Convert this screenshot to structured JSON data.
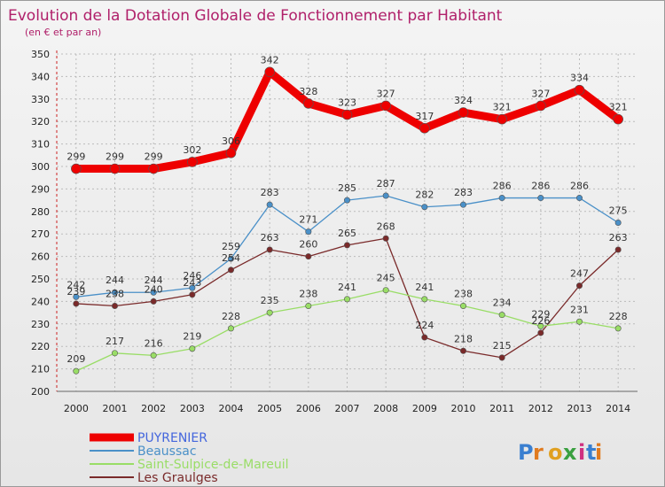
{
  "title": "Evolution de la Dotation Globale de Fonctionnement par Habitant",
  "subtitle": "(en € et par an)",
  "brand": "Proxiti",
  "colors": {
    "PUYRENIER": "#ee0000",
    "Beaussac": "#4a90c8",
    "Saint-Sulpice-de-Mareuil": "#99dd66",
    "Les Graulges": "#7a2a2a",
    "grid": "#bbbbbb",
    "title": "#b0206a"
  },
  "chart_data": {
    "type": "line",
    "title": "Evolution de la Dotation Globale de Fonctionnement par Habitant",
    "subtitle": "(en € et par an)",
    "xlabel": "",
    "ylabel": "",
    "x": [
      "2000",
      "2001",
      "2002",
      "2003",
      "2004",
      "2005",
      "2006",
      "2007",
      "2008",
      "2009",
      "2010",
      "2011",
      "2012",
      "2013",
      "2014"
    ],
    "ylim": [
      200,
      350
    ],
    "yticks": [
      200,
      210,
      220,
      230,
      240,
      250,
      260,
      270,
      280,
      290,
      300,
      310,
      320,
      330,
      340,
      350
    ],
    "grid": true,
    "legend_position": "bottom-left",
    "series": [
      {
        "name": "PUYRENIER",
        "values": [
          299,
          299,
          299,
          302,
          306,
          342,
          328,
          323,
          327,
          317,
          324,
          321,
          327,
          334,
          321
        ]
      },
      {
        "name": "Beaussac",
        "values": [
          242,
          244,
          244,
          246,
          259,
          283,
          271,
          285,
          287,
          282,
          283,
          286,
          286,
          286,
          275
        ]
      },
      {
        "name": "Saint-Sulpice-de-Mareuil",
        "values": [
          209,
          217,
          216,
          219,
          228,
          235,
          238,
          241,
          245,
          241,
          238,
          234,
          229,
          231,
          228
        ]
      },
      {
        "name": "Les Graulges",
        "values": [
          239,
          238,
          240,
          243,
          254,
          263,
          260,
          265,
          268,
          224,
          218,
          215,
          226,
          247,
          263
        ]
      }
    ]
  }
}
